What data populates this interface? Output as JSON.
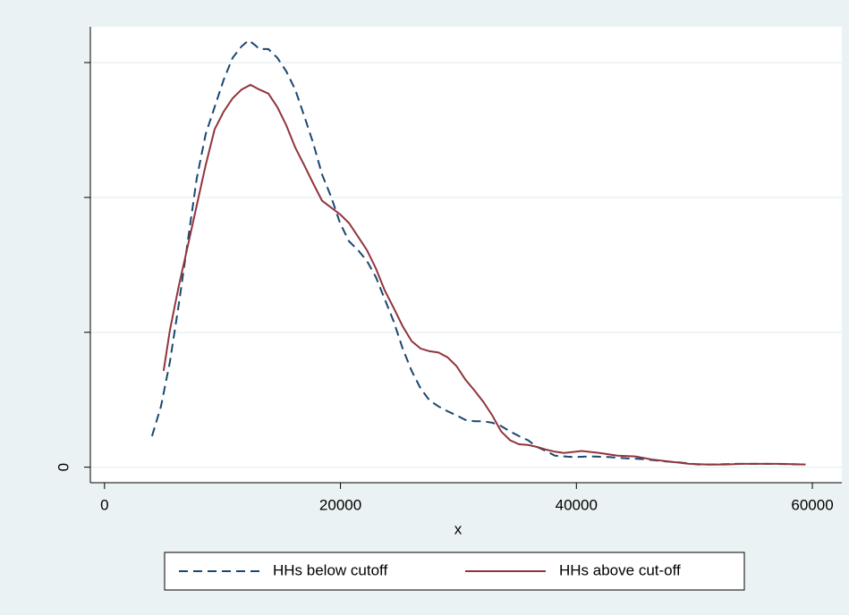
{
  "chart_data": {
    "type": "line",
    "xlabel": "x",
    "xlim": [
      -1200,
      62500
    ],
    "ylim": [
      -2.3e-06,
      6.53e-05
    ],
    "xticks": [
      0,
      20000,
      40000,
      60000
    ],
    "yticks": [
      0
    ],
    "y_unlabeled_ticks": [
      2e-05,
      4e-05,
      6e-05
    ],
    "grid": true,
    "series": [
      {
        "name": "HHs below cutoff",
        "color": "#1a476f",
        "dash": true,
        "x": [
          4023,
          4782,
          5541,
          6300,
          7059,
          7818,
          8577,
          9336,
          10095,
          10854,
          11613,
          12220,
          12751,
          13131,
          13890,
          14649,
          15408,
          16167,
          16926,
          17685,
          18444,
          19203,
          19962,
          20721,
          21480,
          22239,
          22998,
          23757,
          24516,
          25275,
          26034,
          26793,
          27552,
          28311,
          29070,
          29829,
          30588,
          31347,
          32106,
          32865,
          33624,
          34383,
          35142,
          35901,
          36660,
          37419,
          38178,
          39696,
          41214,
          42732,
          44250,
          45768,
          47286,
          48804,
          50322,
          51840,
          53358,
          56394,
          59430
        ],
        "values": [
          4.6e-06,
          9e-06,
          1.56e-05,
          2.42e-05,
          3.35e-05,
          4.28e-05,
          4.94e-05,
          5.34e-05,
          5.74e-05,
          6.07e-05,
          6.24e-05,
          6.33e-05,
          6.26e-05,
          6.2e-05,
          6.2e-05,
          6.07e-05,
          5.87e-05,
          5.6e-05,
          5.21e-05,
          4.81e-05,
          4.34e-05,
          4.01e-05,
          3.62e-05,
          3.35e-05,
          3.22e-05,
          3.06e-05,
          2.82e-05,
          2.49e-05,
          2.16e-05,
          1.76e-05,
          1.43e-05,
          1.17e-05,
          9.9e-06,
          9e-06,
          8.3e-06,
          7.7e-06,
          7e-06,
          6.8e-06,
          6.8e-06,
          6.6e-06,
          6.1e-06,
          5.3e-06,
          4.6e-06,
          4e-06,
          3e-06,
          2.4e-06,
          1.7e-06,
          1.5e-06,
          1.6e-06,
          1.5e-06,
          1.3e-06,
          1.2e-06,
          9e-07,
          7e-07,
          4e-07,
          4e-07,
          5e-07,
          5e-07,
          4e-07
        ]
      },
      {
        "name": "HHs above cut-off",
        "color": "#90353b",
        "dash": false,
        "x": [
          5009,
          5541,
          6300,
          7059,
          7818,
          8577,
          9336,
          10095,
          10854,
          11613,
          12372,
          13131,
          13890,
          14649,
          15408,
          16167,
          16926,
          17685,
          18444,
          19203,
          19962,
          20721,
          21480,
          22239,
          22998,
          23757,
          24516,
          25275,
          26034,
          26793,
          27552,
          28311,
          29070,
          29829,
          30588,
          31347,
          32106,
          32865,
          33624,
          34383,
          35142,
          35901,
          36660,
          37419,
          38178,
          38937,
          40455,
          41973,
          43491,
          45009,
          46527,
          48045,
          49563,
          51081,
          52599,
          54117,
          57153,
          59430
        ],
        "values": [
          1.43e-05,
          2.03e-05,
          2.69e-05,
          3.28e-05,
          3.88e-05,
          4.48e-05,
          5.01e-05,
          5.27e-05,
          5.47e-05,
          5.6e-05,
          5.67e-05,
          5.6e-05,
          5.54e-05,
          5.34e-05,
          5.07e-05,
          4.74e-05,
          4.48e-05,
          4.21e-05,
          3.95e-05,
          3.85e-05,
          3.75e-05,
          3.62e-05,
          3.42e-05,
          3.22e-05,
          2.95e-05,
          2.62e-05,
          2.36e-05,
          2.09e-05,
          1.87e-05,
          1.76e-05,
          1.72e-05,
          1.7e-05,
          1.63e-05,
          1.5e-05,
          1.3e-05,
          1.14e-05,
          9.7e-06,
          7.7e-06,
          5.3e-06,
          4e-06,
          3.4e-06,
          3.3e-06,
          3e-06,
          2.6e-06,
          2.3e-06,
          2.1e-06,
          2.4e-06,
          2.1e-06,
          1.7e-06,
          1.6e-06,
          1.1e-06,
          8e-07,
          5e-07,
          4e-07,
          4e-07,
          5e-07,
          5e-07,
          4e-07
        ]
      }
    ]
  }
}
